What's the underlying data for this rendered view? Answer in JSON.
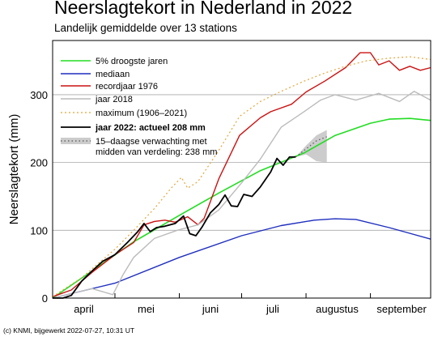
{
  "chart_data": {
    "type": "line",
    "title": "Neerslagtekort in Nederland in 2022",
    "subtitle": "Landelijk gemiddelde over 13 stations",
    "ylabel": "Neerslagtekort (mm)",
    "xlabel": "",
    "ylim": [
      0,
      380
    ],
    "xlim": [
      "2022-04-01",
      "2022-09-30"
    ],
    "y_ticks": [
      0,
      100,
      200,
      300
    ],
    "x_tick_labels": [
      {
        "label": "april",
        "date": "2022-04-16"
      },
      {
        "label": "mei",
        "date": "2022-05-16"
      },
      {
        "label": "juni",
        "date": "2022-06-16"
      },
      {
        "label": "juli",
        "date": "2022-07-16"
      },
      {
        "label": "augustus",
        "date": "2022-08-16"
      },
      {
        "label": "september",
        "date": "2022-09-16"
      }
    ],
    "grid": "horizontal",
    "legend_position": "top-left",
    "footer": "(c) KNMI, bijgewerkt 2022-07-27, 10:31 UT",
    "series": [
      {
        "key": "p5",
        "name": "5% droogste jaren",
        "color": "#22dd22",
        "width": 1.6,
        "points": [
          [
            "2022-04-01",
            0
          ],
          [
            "2022-04-20",
            40
          ],
          [
            "2022-05-10",
            83
          ],
          [
            "2022-06-01",
            122
          ],
          [
            "2022-06-20",
            155
          ],
          [
            "2022-07-10",
            188
          ],
          [
            "2022-07-31",
            214
          ],
          [
            "2022-08-15",
            240
          ],
          [
            "2022-09-01",
            258
          ],
          [
            "2022-09-10",
            264
          ],
          [
            "2022-09-20",
            265
          ],
          [
            "2022-09-30",
            262
          ]
        ]
      },
      {
        "key": "median",
        "name": "mediaan",
        "color": "#1f2fbf",
        "width": 1.4,
        "points": [
          [
            "2022-04-01",
            0
          ],
          [
            "2022-05-01",
            22
          ],
          [
            "2022-06-01",
            60
          ],
          [
            "2022-07-01",
            92
          ],
          [
            "2022-07-20",
            107
          ],
          [
            "2022-08-05",
            115
          ],
          [
            "2022-08-15",
            117
          ],
          [
            "2022-08-25",
            116
          ],
          [
            "2022-09-10",
            104
          ],
          [
            "2022-09-30",
            87
          ]
        ]
      },
      {
        "key": "rec1976",
        "name": "recordjaar 1976",
        "color": "#cc1111",
        "width": 1.4,
        "points": [
          [
            "2022-04-01",
            2
          ],
          [
            "2022-04-10",
            12
          ],
          [
            "2022-04-20",
            38
          ],
          [
            "2022-05-01",
            64
          ],
          [
            "2022-05-10",
            82
          ],
          [
            "2022-05-15",
            108
          ],
          [
            "2022-05-20",
            113
          ],
          [
            "2022-05-25",
            115
          ],
          [
            "2022-05-30",
            112
          ],
          [
            "2022-06-05",
            120
          ],
          [
            "2022-06-10",
            108
          ],
          [
            "2022-06-13",
            118
          ],
          [
            "2022-06-20",
            176
          ],
          [
            "2022-06-30",
            240
          ],
          [
            "2022-07-10",
            266
          ],
          [
            "2022-07-15",
            275
          ],
          [
            "2022-07-25",
            286
          ],
          [
            "2022-08-01",
            304
          ],
          [
            "2022-08-10",
            320
          ],
          [
            "2022-08-20",
            340
          ],
          [
            "2022-08-27",
            362
          ],
          [
            "2022-09-01",
            362
          ],
          [
            "2022-09-05",
            344
          ],
          [
            "2022-09-10",
            350
          ],
          [
            "2022-09-15",
            336
          ],
          [
            "2022-09-20",
            342
          ],
          [
            "2022-09-25",
            336
          ],
          [
            "2022-09-30",
            340
          ]
        ]
      },
      {
        "key": "y2018",
        "name": "jaar 2018",
        "color": "#bbbbbb",
        "width": 1.4,
        "points": [
          [
            "2022-04-01",
            0
          ],
          [
            "2022-04-20",
            14
          ],
          [
            "2022-04-30",
            5
          ],
          [
            "2022-05-05",
            35
          ],
          [
            "2022-05-10",
            60
          ],
          [
            "2022-05-20",
            88
          ],
          [
            "2022-05-31",
            100
          ],
          [
            "2022-06-10",
            108
          ],
          [
            "2022-06-20",
            130
          ],
          [
            "2022-07-01",
            170
          ],
          [
            "2022-07-10",
            205
          ],
          [
            "2022-07-20",
            252
          ],
          [
            "2022-07-31",
            275
          ],
          [
            "2022-08-08",
            292
          ],
          [
            "2022-08-15",
            300
          ],
          [
            "2022-08-25",
            292
          ],
          [
            "2022-09-05",
            302
          ],
          [
            "2022-09-15",
            290
          ],
          [
            "2022-09-22",
            305
          ],
          [
            "2022-09-30",
            292
          ]
        ]
      },
      {
        "key": "max",
        "name": "maximum (1906–2021)",
        "color": "#e3a53a",
        "width": 1.2,
        "dashed": true,
        "points": [
          [
            "2022-04-01",
            2
          ],
          [
            "2022-04-15",
            30
          ],
          [
            "2022-05-01",
            72
          ],
          [
            "2022-05-10",
            100
          ],
          [
            "2022-05-20",
            132
          ],
          [
            "2022-05-28",
            162
          ],
          [
            "2022-06-02",
            178
          ],
          [
            "2022-06-05",
            162
          ],
          [
            "2022-06-10",
            172
          ],
          [
            "2022-06-20",
            218
          ],
          [
            "2022-06-30",
            268
          ],
          [
            "2022-07-10",
            290
          ],
          [
            "2022-07-20",
            305
          ],
          [
            "2022-07-31",
            320
          ],
          [
            "2022-08-10",
            332
          ],
          [
            "2022-08-20",
            342
          ],
          [
            "2022-08-30",
            350
          ],
          [
            "2022-09-10",
            354
          ],
          [
            "2022-09-20",
            356
          ],
          [
            "2022-09-30",
            352
          ]
        ]
      },
      {
        "key": "y2022",
        "name": "jaar 2022: actueel 208 mm",
        "color": "#000000",
        "width": 1.8,
        "bold": true,
        "points": [
          [
            "2022-04-01",
            0
          ],
          [
            "2022-04-06",
            0
          ],
          [
            "2022-04-10",
            4
          ],
          [
            "2022-04-15",
            25
          ],
          [
            "2022-04-20",
            40
          ],
          [
            "2022-04-25",
            54
          ],
          [
            "2022-05-01",
            64
          ],
          [
            "2022-05-07",
            82
          ],
          [
            "2022-05-12",
            98
          ],
          [
            "2022-05-15",
            110
          ],
          [
            "2022-05-18",
            98
          ],
          [
            "2022-05-21",
            104
          ],
          [
            "2022-05-25",
            106
          ],
          [
            "2022-05-30",
            110
          ],
          [
            "2022-06-03",
            121
          ],
          [
            "2022-06-06",
            95
          ],
          [
            "2022-06-09",
            92
          ],
          [
            "2022-06-12",
            105
          ],
          [
            "2022-06-16",
            126
          ],
          [
            "2022-06-20",
            138
          ],
          [
            "2022-06-23",
            152
          ],
          [
            "2022-06-26",
            136
          ],
          [
            "2022-06-29",
            135
          ],
          [
            "2022-07-02",
            153
          ],
          [
            "2022-07-06",
            150
          ],
          [
            "2022-07-10",
            164
          ],
          [
            "2022-07-15",
            186
          ],
          [
            "2022-07-18",
            206
          ],
          [
            "2022-07-21",
            196
          ],
          [
            "2022-07-24",
            208
          ],
          [
            "2022-07-27",
            208
          ]
        ]
      },
      {
        "key": "forecast",
        "name": "15–daagse verwachting met midden van verdeling: 238 mm",
        "color": "#555555",
        "width": 1.2,
        "dotted": true,
        "points": [
          [
            "2022-07-27",
            208
          ],
          [
            "2022-08-01",
            220
          ],
          [
            "2022-08-06",
            232
          ],
          [
            "2022-08-11",
            238
          ]
        ]
      }
    ],
    "forecast_band": {
      "color": "#cccccc",
      "upper": [
        [
          "2022-07-27",
          208
        ],
        [
          "2022-08-01",
          225
        ],
        [
          "2022-08-06",
          240
        ],
        [
          "2022-08-11",
          248
        ]
      ],
      "lower": [
        [
          "2022-07-27",
          208
        ],
        [
          "2022-08-01",
          212
        ],
        [
          "2022-08-06",
          202
        ],
        [
          "2022-08-11",
          200
        ]
      ]
    }
  }
}
